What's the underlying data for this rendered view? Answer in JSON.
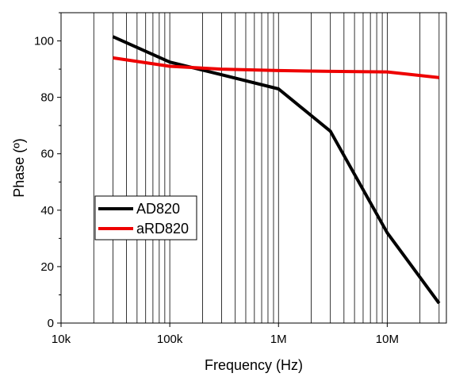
{
  "chart_data": {
    "type": "line",
    "xscale": "log",
    "xlim": [
      10000,
      35000000
    ],
    "ylim": [
      0,
      110
    ],
    "xlabel": "Frequency (Hz)",
    "ylabel": "Phase (º)",
    "xticks": [
      {
        "value": 10000,
        "label": "10k"
      },
      {
        "value": 100000,
        "label": "100k"
      },
      {
        "value": 1000000,
        "label": "1M"
      },
      {
        "value": 10000000,
        "label": "10M"
      }
    ],
    "yticks": [
      0,
      20,
      40,
      60,
      80,
      100
    ],
    "grid": "vertical log gridlines",
    "legend_position": "middle-left",
    "series": [
      {
        "name": "AD820",
        "color": "#000000",
        "x": [
          30000,
          100000,
          300000,
          1000000,
          3000000,
          10000000,
          30000000
        ],
        "y": [
          101.5,
          92.5,
          88.0,
          83.0,
          68.0,
          32.0,
          7.0
        ]
      },
      {
        "name": "aRD820",
        "color": "#ee0000",
        "x": [
          30000,
          100000,
          300000,
          1000000,
          3000000,
          10000000,
          30000000
        ],
        "y": [
          94.0,
          91.0,
          90.0,
          89.5,
          89.2,
          89.0,
          87.0
        ]
      }
    ]
  }
}
